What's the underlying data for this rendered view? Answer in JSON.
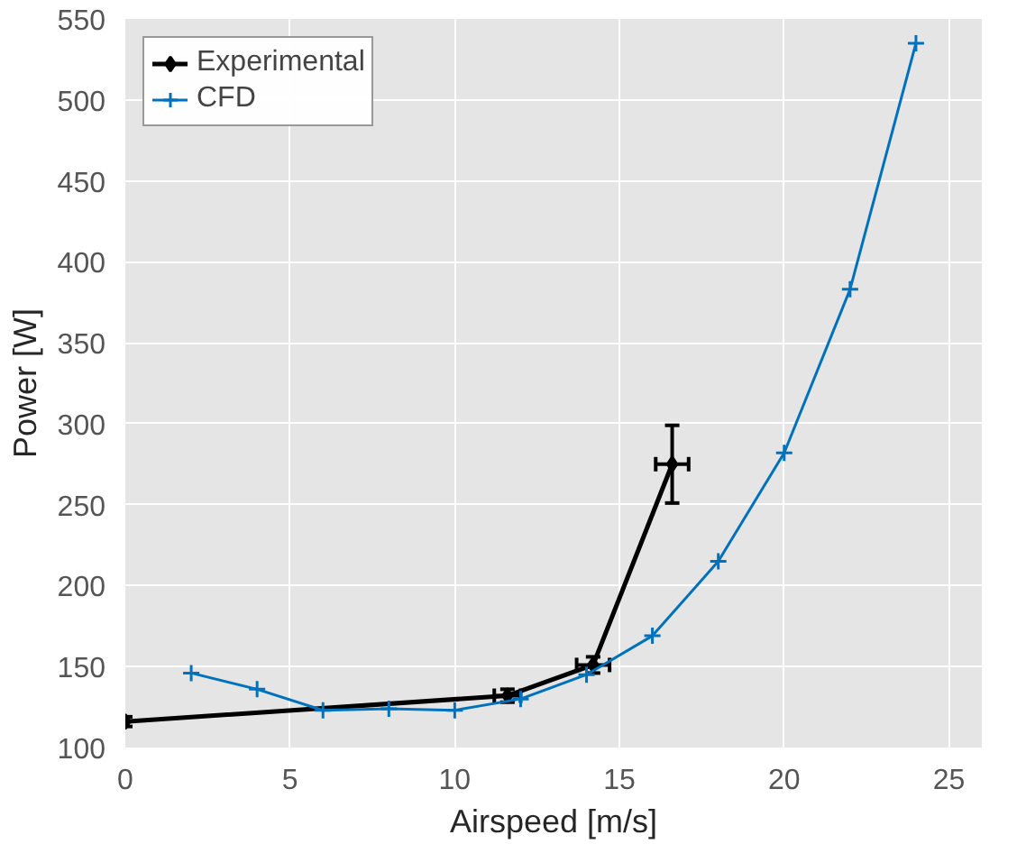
{
  "chart_data": {
    "type": "line",
    "xlabel": "Airspeed [m/s]",
    "ylabel": "Power [W]",
    "xlim": [
      0,
      26
    ],
    "ylim": [
      100,
      550
    ],
    "xticks": [
      0,
      5,
      10,
      15,
      20,
      25
    ],
    "yticks": [
      100,
      150,
      200,
      250,
      300,
      350,
      400,
      450,
      500,
      550
    ],
    "grid": true,
    "legend": "top left",
    "line_style": "solid",
    "series": [
      {
        "name": "Experimental",
        "color": "#000000",
        "marker": "diamond",
        "x": [
          0,
          11.6,
          14.2,
          16.6
        ],
        "values": [
          116,
          132,
          151,
          275
        ],
        "errors": [
          3,
          4,
          5,
          24
        ],
        "xerrors": [
          null,
          0.4,
          0.5,
          0.5
        ]
      },
      {
        "name": "CFD",
        "color": "#0072bd",
        "marker": "cross",
        "x": [
          2,
          4,
          6,
          8,
          10,
          12,
          14,
          16,
          18,
          20,
          22,
          24
        ],
        "values": [
          146,
          136,
          123,
          124,
          123,
          130,
          145,
          169,
          215,
          282,
          383,
          535
        ]
      }
    ]
  }
}
